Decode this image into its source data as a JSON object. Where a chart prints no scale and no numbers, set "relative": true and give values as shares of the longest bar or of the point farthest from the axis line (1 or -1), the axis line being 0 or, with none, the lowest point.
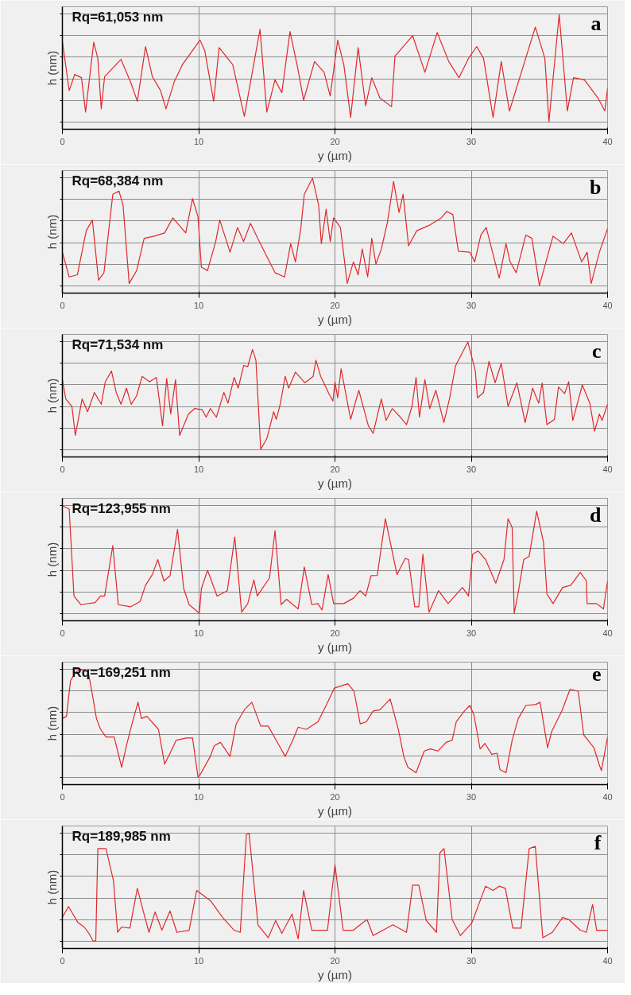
{
  "chart_data": [
    {
      "type": "line",
      "relative": true,
      "xlabel": "y (µm)",
      "ylabel": "h (nm)",
      "xlim": [
        0,
        40
      ],
      "xticks": [
        0,
        10,
        20,
        30,
        40
      ],
      "grid": true,
      "annotations": [
        "Rq=61,053 nm",
        "a"
      ],
      "series": [
        {
          "color": "#e0282c",
          "x": [
            0,
            0.5,
            0.9,
            1.4,
            1.7,
            2.3,
            2.6,
            2.85,
            3.1,
            4.3,
            5.0,
            5.5,
            6.1,
            6.6,
            7.2,
            7.6,
            8.2,
            8.8,
            10.1,
            10.45,
            11.1,
            11.5,
            12.5,
            13.35,
            14.5,
            15.0,
            15.6,
            16.1,
            16.7,
            17.25,
            17.7,
            18.5,
            19.2,
            19.65,
            20.2,
            20.65,
            21.15,
            21.7,
            22.25,
            22.7,
            23.3,
            24.15,
            24.4,
            25.7,
            26.6,
            27.5,
            28.35,
            29.1,
            29.8,
            30.4,
            30.9,
            31.6,
            32.2,
            32.8,
            34.7,
            35.4,
            35.7,
            36.45,
            37.05,
            37.5,
            38.3,
            39.3,
            39.8,
            40
          ],
          "values": [
            0.75,
            0.29,
            0.44,
            0.41,
            0.09,
            0.74,
            0.59,
            0.12,
            0.42,
            0.58,
            0.37,
            0.19,
            0.7,
            0.42,
            0.29,
            0.12,
            0.37,
            0.53,
            0.76,
            0.66,
            0.19,
            0.69,
            0.53,
            0.05,
            0.86,
            0.09,
            0.39,
            0.27,
            0.84,
            0.51,
            0.2,
            0.56,
            0.46,
            0.24,
            0.76,
            0.53,
            0.04,
            0.69,
            0.15,
            0.41,
            0.22,
            0.14,
            0.61,
            0.8,
            0.46,
            0.83,
            0.56,
            0.41,
            0.59,
            0.7,
            0.59,
            0.04,
            0.56,
            0.1,
            0.88,
            0.59,
            0.0,
            1.0,
            0.1,
            0.41,
            0.39,
            0.22,
            0.1,
            0.31
          ]
        }
      ]
    },
    {
      "type": "line",
      "relative": true,
      "xlabel": "y (µm)",
      "ylabel": "h (nm)",
      "xlim": [
        0,
        40
      ],
      "xticks": [
        0,
        10,
        20,
        30,
        40
      ],
      "grid": true,
      "annotations": [
        "Rq=68,384 nm",
        "b"
      ],
      "series": [
        {
          "color": "#e0282c",
          "x": [
            0,
            0.5,
            1.1,
            1.75,
            2.2,
            2.65,
            3.05,
            3.7,
            4.15,
            4.45,
            4.9,
            5.45,
            6.0,
            6.75,
            7.5,
            8.1,
            9.05,
            9.55,
            9.95,
            10.2,
            10.65,
            11.25,
            11.55,
            12.3,
            12.85,
            13.3,
            13.8,
            14.45,
            15.0,
            15.6,
            16.3,
            16.75,
            17.1,
            17.5,
            17.75,
            18.35,
            18.8,
            19.0,
            19.35,
            19.65,
            19.9,
            20.4,
            20.9,
            21.35,
            21.7,
            22.0,
            22.4,
            22.7,
            23.0,
            23.4,
            23.85,
            24.3,
            24.7,
            25.0,
            25.4,
            26.0,
            26.9,
            27.8,
            28.2,
            28.65,
            29.05,
            29.9,
            30.25,
            30.7,
            31.1,
            31.7,
            32.05,
            32.55,
            32.85,
            33.3,
            34.0,
            34.45,
            35.0,
            36.0,
            36.75,
            37.35,
            38.1,
            38.5,
            38.8,
            39.4,
            40
          ],
          "values": [
            0.31,
            0.08,
            0.1,
            0.51,
            0.61,
            0.05,
            0.12,
            0.85,
            0.88,
            0.75,
            0.02,
            0.14,
            0.44,
            0.46,
            0.49,
            0.63,
            0.49,
            0.81,
            0.64,
            0.17,
            0.14,
            0.41,
            0.61,
            0.31,
            0.54,
            0.41,
            0.58,
            0.41,
            0.27,
            0.12,
            0.08,
            0.39,
            0.22,
            0.54,
            0.85,
            1.0,
            0.75,
            0.39,
            0.71,
            0.41,
            0.63,
            0.54,
            0.02,
            0.22,
            0.1,
            0.34,
            0.08,
            0.44,
            0.2,
            0.34,
            0.59,
            0.97,
            0.68,
            0.85,
            0.37,
            0.51,
            0.56,
            0.63,
            0.69,
            0.66,
            0.32,
            0.31,
            0.22,
            0.47,
            0.54,
            0.24,
            0.07,
            0.39,
            0.22,
            0.12,
            0.47,
            0.44,
            0.0,
            0.46,
            0.39,
            0.49,
            0.22,
            0.31,
            0.02,
            0.31,
            0.53
          ]
        }
      ]
    },
    {
      "type": "line",
      "relative": true,
      "xlabel": "y (µm)",
      "ylabel": "h (nm)",
      "xlim": [
        0,
        40
      ],
      "xticks": [
        0,
        10,
        20,
        30,
        40
      ],
      "grid": true,
      "annotations": [
        "Rq=71,534 nm",
        "c"
      ],
      "series": [
        {
          "color": "#e0282c",
          "x": [
            0,
            0.25,
            0.7,
            0.95,
            1.45,
            1.85,
            2.35,
            2.85,
            3.15,
            3.6,
            3.95,
            4.3,
            4.7,
            5.05,
            5.45,
            5.85,
            6.4,
            6.9,
            7.35,
            7.65,
            7.95,
            8.3,
            8.6,
            9.25,
            9.7,
            10.25,
            10.55,
            10.85,
            11.3,
            11.85,
            12.15,
            12.6,
            12.9,
            13.3,
            13.6,
            13.95,
            14.2,
            14.55,
            15.0,
            15.5,
            15.7,
            16.0,
            16.35,
            16.6,
            17.1,
            17.8,
            18.4,
            18.6,
            18.95,
            19.55,
            19.85,
            20.0,
            20.2,
            20.45,
            21.15,
            21.75,
            22.45,
            22.8,
            23.4,
            23.75,
            24.2,
            24.8,
            25.25,
            25.65,
            25.95,
            26.2,
            26.6,
            26.95,
            27.4,
            27.99,
            28.4,
            28.85,
            29.75,
            30.3,
            30.45,
            30.9,
            31.3,
            31.75,
            32.2,
            32.7,
            33.35,
            33.95,
            34.5,
            34.95,
            35.2,
            35.55,
            36.1,
            36.4,
            36.85,
            37.15,
            37.45,
            38.15,
            38.7,
            39.05,
            39.4,
            39.6,
            40
          ],
          "values": [
            0.65,
            0.47,
            0.4,
            0.13,
            0.47,
            0.35,
            0.53,
            0.42,
            0.63,
            0.73,
            0.53,
            0.42,
            0.57,
            0.42,
            0.5,
            0.68,
            0.63,
            0.67,
            0.22,
            0.66,
            0.33,
            0.65,
            0.13,
            0.33,
            0.38,
            0.37,
            0.3,
            0.38,
            0.3,
            0.53,
            0.43,
            0.67,
            0.57,
            0.78,
            0.77,
            0.93,
            0.83,
            0.0,
            0.1,
            0.35,
            0.28,
            0.43,
            0.68,
            0.57,
            0.72,
            0.62,
            0.68,
            0.83,
            0.68,
            0.52,
            0.45,
            0.63,
            0.48,
            0.75,
            0.28,
            0.55,
            0.22,
            0.15,
            0.47,
            0.27,
            0.38,
            0.3,
            0.23,
            0.4,
            0.67,
            0.3,
            0.65,
            0.38,
            0.55,
            0.25,
            0.47,
            0.78,
            1.0,
            0.73,
            0.48,
            0.53,
            0.82,
            0.62,
            0.8,
            0.4,
            0.62,
            0.25,
            0.57,
            0.43,
            0.62,
            0.23,
            0.28,
            0.58,
            0.52,
            0.63,
            0.27,
            0.6,
            0.43,
            0.17,
            0.33,
            0.27,
            0.42
          ]
        }
      ]
    },
    {
      "type": "line",
      "relative": true,
      "xlabel": "y (µm)",
      "ylabel": "h (nm)",
      "xlim": [
        0,
        40
      ],
      "xticks": [
        0,
        10,
        20,
        30,
        40
      ],
      "grid": true,
      "annotations": [
        "Rq=123,955 nm",
        "d"
      ],
      "series": [
        {
          "color": "#e0282c",
          "x": [
            0,
            0.5,
            0.85,
            1.35,
            2.4,
            2.8,
            3.1,
            3.7,
            4.1,
            5.0,
            5.7,
            6.1,
            6.6,
            7.0,
            7.45,
            7.9,
            8.45,
            8.9,
            9.3,
            10.05,
            10.2,
            10.65,
            11.35,
            12.1,
            12.65,
            13.15,
            13.6,
            14.05,
            14.3,
            15.2,
            15.6,
            16.05,
            16.45,
            17.3,
            17.75,
            18.3,
            18.75,
            19.05,
            19.5,
            19.9,
            20.65,
            21.35,
            21.85,
            22.25,
            22.65,
            23.1,
            23.7,
            24.55,
            25.15,
            25.4,
            25.85,
            26.15,
            26.45,
            26.9,
            27.6,
            28.3,
            29.35,
            29.8,
            30.1,
            30.5,
            31.05,
            31.8,
            32.4,
            32.7,
            33.0,
            33.15,
            33.4,
            33.85,
            34.25,
            34.8,
            35.3,
            35.55,
            36.0,
            36.7,
            37.3,
            38.0,
            38.45,
            38.5,
            39.2,
            39.7,
            40
          ],
          "values": [
            1.0,
            0.97,
            0.16,
            0.08,
            0.1,
            0.16,
            0.16,
            0.63,
            0.08,
            0.06,
            0.11,
            0.26,
            0.36,
            0.5,
            0.3,
            0.35,
            0.78,
            0.23,
            0.08,
            0.0,
            0.23,
            0.4,
            0.16,
            0.21,
            0.71,
            0.01,
            0.09,
            0.31,
            0.16,
            0.33,
            0.77,
            0.08,
            0.13,
            0.04,
            0.43,
            0.08,
            0.09,
            0.03,
            0.36,
            0.09,
            0.09,
            0.14,
            0.21,
            0.16,
            0.35,
            0.35,
            0.88,
            0.36,
            0.51,
            0.5,
            0.06,
            0.06,
            0.55,
            0.01,
            0.21,
            0.09,
            0.24,
            0.16,
            0.55,
            0.58,
            0.5,
            0.28,
            0.5,
            0.88,
            0.8,
            0.0,
            0.16,
            0.5,
            0.53,
            0.95,
            0.66,
            0.18,
            0.09,
            0.24,
            0.26,
            0.38,
            0.3,
            0.09,
            0.09,
            0.04,
            0.3
          ]
        }
      ]
    },
    {
      "type": "line",
      "relative": true,
      "xlabel": "y (µm)",
      "ylabel": "h (nm)",
      "xlim": [
        0,
        40
      ],
      "xticks": [
        0,
        10,
        20,
        30,
        40
      ],
      "grid": true,
      "annotations": [
        "Rq=169,251 nm",
        "e"
      ],
      "series": [
        {
          "color": "#e0282c",
          "x": [
            0,
            0.3,
            0.6,
            1.0,
            1.3,
            1.9,
            2.2,
            2.5,
            2.8,
            3.2,
            3.8,
            4.35,
            4.7,
            5.15,
            5.55,
            5.8,
            6.2,
            7.05,
            7.5,
            7.9,
            8.35,
            9.1,
            9.55,
            9.95,
            10.1,
            10.85,
            11.15,
            11.6,
            12.3,
            12.75,
            13.35,
            13.9,
            14.55,
            15.1,
            15.55,
            16.0,
            16.35,
            16.9,
            17.3,
            17.9,
            18.75,
            19.35,
            19.95,
            20.95,
            21.4,
            21.85,
            22.3,
            22.8,
            23.3,
            24.05,
            24.65,
            25.05,
            25.35,
            25.95,
            26.55,
            27.0,
            27.55,
            28.15,
            28.6,
            28.9,
            29.5,
            29.9,
            30.2,
            30.65,
            31.0,
            31.5,
            31.9,
            32.1,
            32.55,
            33.0,
            33.45,
            34.0,
            34.75,
            35.05,
            35.6,
            35.9,
            36.65,
            37.25,
            37.85,
            38.25,
            39.0,
            39.4,
            39.55,
            40
          ],
          "values": [
            0.55,
            0.57,
            0.9,
            0.98,
            1.0,
            0.98,
            0.77,
            0.55,
            0.45,
            0.38,
            0.38,
            0.1,
            0.3,
            0.52,
            0.7,
            0.55,
            0.57,
            0.45,
            0.13,
            0.23,
            0.35,
            0.37,
            0.37,
            0.01,
            0.03,
            0.2,
            0.3,
            0.33,
            0.2,
            0.5,
            0.63,
            0.7,
            0.48,
            0.48,
            0.38,
            0.28,
            0.2,
            0.35,
            0.47,
            0.45,
            0.52,
            0.67,
            0.83,
            0.87,
            0.8,
            0.5,
            0.52,
            0.62,
            0.63,
            0.73,
            0.45,
            0.2,
            0.1,
            0.05,
            0.25,
            0.27,
            0.25,
            0.33,
            0.35,
            0.52,
            0.62,
            0.67,
            0.58,
            0.27,
            0.32,
            0.22,
            0.23,
            0.08,
            0.05,
            0.35,
            0.55,
            0.67,
            0.68,
            0.7,
            0.28,
            0.43,
            0.62,
            0.82,
            0.8,
            0.4,
            0.28,
            0.12,
            0.07,
            0.38
          ]
        }
      ]
    },
    {
      "type": "line",
      "relative": true,
      "xlabel": "y (µm)",
      "ylabel": "h (nm)",
      "xlim": [
        0,
        40
      ],
      "xticks": [
        0,
        10,
        20,
        30,
        40
      ],
      "grid": true,
      "annotations": [
        "Rq=189,985 nm",
        "f"
      ],
      "series": [
        {
          "color": "#e0282c",
          "x": [
            0,
            0.45,
            1.15,
            1.6,
            1.95,
            2.25,
            2.45,
            2.6,
            3.2,
            3.75,
            4.05,
            4.35,
            4.95,
            5.5,
            5.95,
            6.35,
            6.8,
            7.3,
            7.9,
            8.4,
            9.3,
            9.85,
            10.9,
            11.75,
            12.6,
            13.05,
            13.5,
            13.7,
            14.35,
            15.1,
            15.65,
            16.1,
            16.85,
            17.3,
            17.7,
            18.3,
            19.45,
            20.0,
            20.6,
            21.35,
            22.35,
            22.8,
            24.25,
            25.25,
            25.7,
            26.15,
            26.7,
            27.45,
            27.7,
            28.0,
            28.6,
            29.2,
            30.05,
            31.05,
            31.6,
            32.05,
            32.5,
            33.05,
            33.65,
            34.25,
            34.7,
            35.25,
            35.95,
            36.7,
            37.15,
            38.0,
            38.45,
            38.9,
            39.2,
            40
          ],
          "values": [
            0.22,
            0.32,
            0.17,
            0.13,
            0.07,
            0.0,
            0.0,
            0.86,
            0.86,
            0.56,
            0.08,
            0.13,
            0.12,
            0.49,
            0.27,
            0.08,
            0.27,
            0.1,
            0.28,
            0.08,
            0.1,
            0.47,
            0.37,
            0.22,
            0.1,
            0.08,
            0.99,
            1.0,
            0.15,
            0.03,
            0.19,
            0.07,
            0.25,
            0.02,
            0.47,
            0.1,
            0.1,
            0.71,
            0.1,
            0.1,
            0.2,
            0.05,
            0.15,
            0.08,
            0.52,
            0.52,
            0.19,
            0.08,
            0.82,
            0.86,
            0.2,
            0.05,
            0.17,
            0.51,
            0.47,
            0.51,
            0.49,
            0.12,
            0.12,
            0.86,
            0.88,
            0.03,
            0.08,
            0.22,
            0.2,
            0.1,
            0.08,
            0.34,
            0.1,
            0.1
          ]
        }
      ]
    }
  ]
}
